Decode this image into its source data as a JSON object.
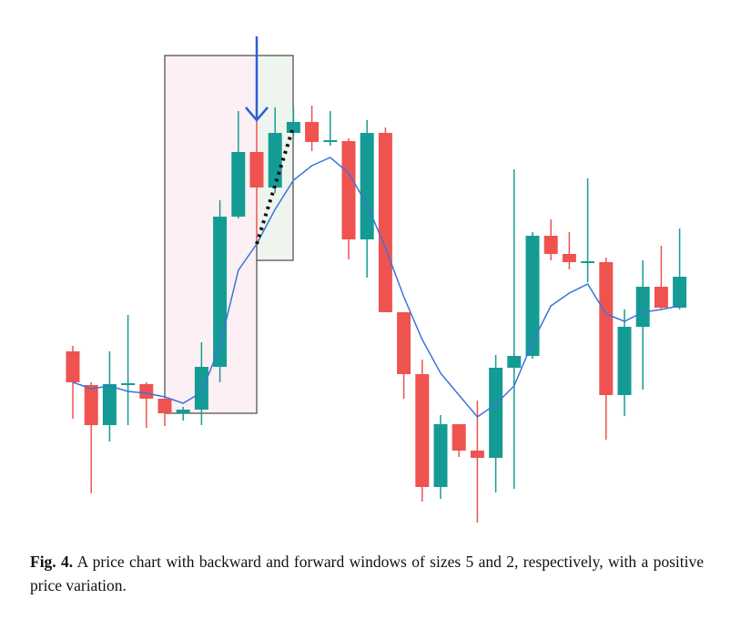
{
  "chart_data": {
    "type": "candlestick",
    "ylim": [
      0,
      600
    ],
    "up_color": "#149c94",
    "down_color": "#ef5350",
    "line_color": "#3b74d9",
    "open": [
      214,
      177,
      133,
      177,
      178,
      162,
      146,
      150,
      197,
      362,
      433,
      394,
      454,
      466,
      444,
      445,
      337,
      454,
      257,
      189,
      65,
      134,
      105,
      97,
      196,
      209,
      341,
      321,
      311,
      312,
      166,
      241,
      285,
      262
    ],
    "high": [
      220,
      180,
      214,
      254,
      180,
      164,
      153,
      224,
      380,
      478,
      480,
      482,
      482,
      484,
      478,
      448,
      468,
      460,
      257,
      205,
      144,
      134,
      160,
      210,
      414,
      345,
      359,
      345,
      404,
      317,
      260,
      314,
      330,
      349
    ],
    "low": [
      140,
      58,
      115,
      133,
      130,
      132,
      138,
      133,
      180,
      360,
      330,
      388,
      450,
      434,
      440,
      315,
      295,
      257,
      162,
      49,
      52,
      98,
      26,
      59,
      63,
      206,
      314,
      304,
      290,
      117,
      143,
      172,
      260,
      260
    ],
    "close": [
      180,
      133,
      178,
      179,
      162,
      146,
      150,
      197,
      362,
      433,
      394,
      454,
      466,
      444,
      446,
      337,
      454,
      257,
      189,
      65,
      134,
      105,
      97,
      196,
      209,
      341,
      321,
      312,
      313,
      166,
      241,
      285,
      262,
      296
    ],
    "moving_average": [
      180,
      173,
      176,
      170,
      168,
      164,
      157,
      169,
      220,
      303,
      332,
      370,
      402,
      418,
      427,
      410,
      375,
      328,
      274,
      227,
      190,
      166,
      142,
      156,
      176,
      224,
      264,
      278,
      288,
      255,
      247,
      257,
      260,
      264
    ]
  },
  "caption": {
    "label": "Fig. 4.",
    "text": "A price chart with backward and forward windows of sizes 5 and 2, respectively, with a positive price variation."
  }
}
